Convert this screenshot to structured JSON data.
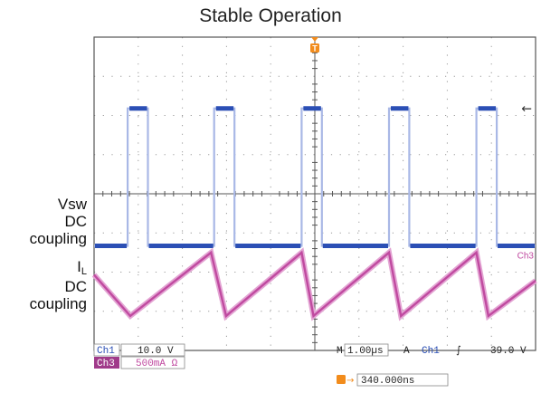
{
  "title": "Stable Operation",
  "labels": {
    "vsw": [
      "Vsw",
      "DC",
      "coupling"
    ],
    "il_main": "I",
    "il_sub": "L",
    "il_rest": [
      "DC",
      "coupling"
    ]
  },
  "markers": {
    "trigger_glyph": "T",
    "ch3_marker": "Ch3",
    "trigger_level_glyph": "←"
  },
  "readouts": {
    "ch1_tag": "Ch1",
    "ch1_scale": "10.0 V",
    "ch3_tag": "Ch3",
    "ch3_scale": "500mA Ω",
    "timebase_prefix": "M",
    "timebase": "1.00µs",
    "trigger_mode": "A",
    "trigger_source": "Ch1",
    "trigger_slope": "∫",
    "trigger_level": "39.0 V",
    "trigger_position": "340.000ns"
  },
  "colors": {
    "ch1": "#2b4fb5",
    "ch1_glow": "#a9b8e6",
    "ch3": "#c04aa0",
    "ch3_glow": "#e3a4d3",
    "grid": "#9a9a9a",
    "frame": "#555555",
    "trigger": "#f28c1c",
    "ch3_tag_bg": "#a03a8a"
  },
  "chart_data": {
    "type": "line",
    "title": "Stable Operation",
    "x_unit": "divisions (1.00µs/div)",
    "xlim": [
      0,
      10
    ],
    "ylim": [
      -4,
      4
    ],
    "divisions": {
      "x": 10,
      "y": 8
    },
    "grid": true,
    "series": [
      {
        "name": "Vsw",
        "edges": {
          "rise": [
            0.76,
            2.72,
            4.7,
            6.68,
            8.66
          ],
          "fall": [
            1.22,
            3.18,
            5.16,
            7.14,
            9.12
          ]
        },
        "high_div": 2.18,
        "low_div": -1.33,
        "high_value_V": 35,
        "low_value_V": 0
      },
      {
        "name": "IL",
        "peak_x": [
          0,
          2.65,
          4.7,
          6.68,
          8.66
        ],
        "valley_x": [
          0.82,
          2.99,
          4.97,
          6.95,
          8.93
        ],
        "peak_div": -1.5,
        "valley_div": -3.12,
        "start_div": -2.07,
        "end_div": -2.22
      }
    ]
  }
}
